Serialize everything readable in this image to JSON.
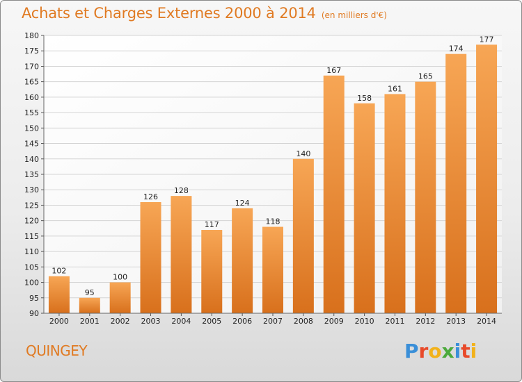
{
  "header": {
    "title": "Achats et Charges Externes 2000 à 2014",
    "subtitle": "(en milliers d'€)"
  },
  "footer": {
    "commune": "QUINGEY",
    "logo_text": "Proxiti"
  },
  "colors": {
    "accent": "#e07a22",
    "bar_top": "#f7a655",
    "bar_bottom": "#d8701c"
  },
  "chart_data": {
    "type": "bar",
    "title": "Achats et Charges Externes 2000 à 2014",
    "subtitle": "(en milliers d'€)",
    "categories": [
      "2000",
      "2001",
      "2002",
      "2003",
      "2004",
      "2005",
      "2006",
      "2007",
      "2008",
      "2009",
      "2010",
      "2011",
      "2012",
      "2013",
      "2014"
    ],
    "values": [
      102,
      95,
      100,
      126,
      128,
      117,
      124,
      118,
      140,
      167,
      158,
      161,
      165,
      174,
      177
    ],
    "xlabel": "",
    "ylabel": "",
    "ylim": [
      90,
      180
    ],
    "ytick_step": 5,
    "grid": true,
    "legend": "none"
  }
}
